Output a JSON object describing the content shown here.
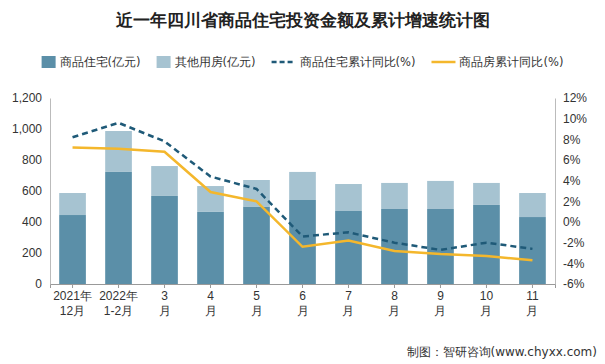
{
  "chart_data": {
    "type": "bar",
    "title": "近一年四川省商品住宅投资金额及累计增速统计图",
    "categories": [
      "2021年12月",
      "2022年1-2月",
      "3月",
      "4月",
      "5月",
      "6月",
      "7月",
      "8月",
      "9月",
      "10月",
      "11月"
    ],
    "stacked": true,
    "legend": "top",
    "grid": false,
    "series": [
      {
        "name": "商品住宅(亿元)",
        "type": "bar",
        "color": "#5b8fa8",
        "values": [
          445,
          723,
          568,
          465,
          500,
          542,
          471,
          484,
          484,
          510,
          432
        ]
      },
      {
        "name": "其他用房(亿元)",
        "type": "bar",
        "color": "#a6c3d1",
        "values": [
          142,
          264,
          193,
          167,
          171,
          181,
          174,
          168,
          181,
          142,
          155
        ]
      },
      {
        "name": "商品住宅累计同比(%)",
        "type": "line",
        "axis": "y2",
        "color": "#1f5a78",
        "line_style": "dashed",
        "values": [
          8.2,
          9.6,
          7.8,
          4.4,
          3.2,
          -1.4,
          -1.0,
          -2.0,
          -2.7,
          -2.0,
          -2.6
        ]
      },
      {
        "name": "商品房累计同比(%)",
        "type": "line",
        "axis": "y2",
        "color": "#f4b72c",
        "line_style": "solid",
        "values": [
          7.2,
          7.1,
          6.8,
          2.9,
          2.0,
          -2.4,
          -1.8,
          -2.8,
          -3.1,
          -3.3,
          -3.7
        ]
      }
    ],
    "ylim": [
      0,
      1200
    ],
    "yticks": [
      0,
      200,
      400,
      600,
      800,
      {
        "value": 1000,
        "label": "1,000"
      },
      {
        "value": 1200,
        "label": "1,200"
      }
    ],
    "y2lim": [
      -6,
      12
    ],
    "y2ticks": [
      {
        "value": -6,
        "label": "-6%"
      },
      {
        "value": -4,
        "label": "-4%"
      },
      {
        "value": -2,
        "label": "-2%"
      },
      {
        "value": 0,
        "label": "0%"
      },
      {
        "value": 2,
        "label": "2%"
      },
      {
        "value": 4,
        "label": "4%"
      },
      {
        "value": 6,
        "label": "6%"
      },
      {
        "value": 8,
        "label": "8%"
      },
      {
        "value": 10,
        "label": "10%"
      },
      {
        "value": 12,
        "label": "12%"
      }
    ],
    "annotations": [
      "制图：智研咨询(www.chyxx.com)"
    ]
  }
}
